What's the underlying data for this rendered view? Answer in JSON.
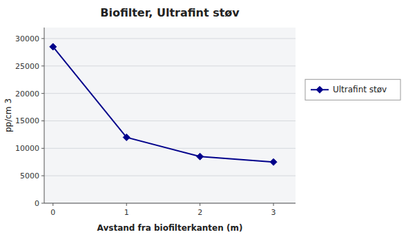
{
  "chart_data": {
    "type": "line",
    "title": "Biofilter, Ultrafint støv",
    "x_label": "Avstand fra biofilterkanten (m)",
    "y_label": "pp/cm 3",
    "x": [
      0,
      1,
      2,
      3
    ],
    "series": [
      {
        "name": "Ultrafint støv",
        "color": "#00008B",
        "marker": "diamond",
        "values": [
          28500,
          12000,
          8500,
          7500
        ]
      }
    ],
    "xlim": [
      -0.12,
      3.3
    ],
    "ylim": [
      0,
      32000
    ],
    "xticks": [
      0,
      1,
      2,
      3
    ],
    "yticks": [
      0,
      5000,
      10000,
      15000,
      20000,
      25000,
      30000
    ],
    "grid": true,
    "legend": "right"
  }
}
